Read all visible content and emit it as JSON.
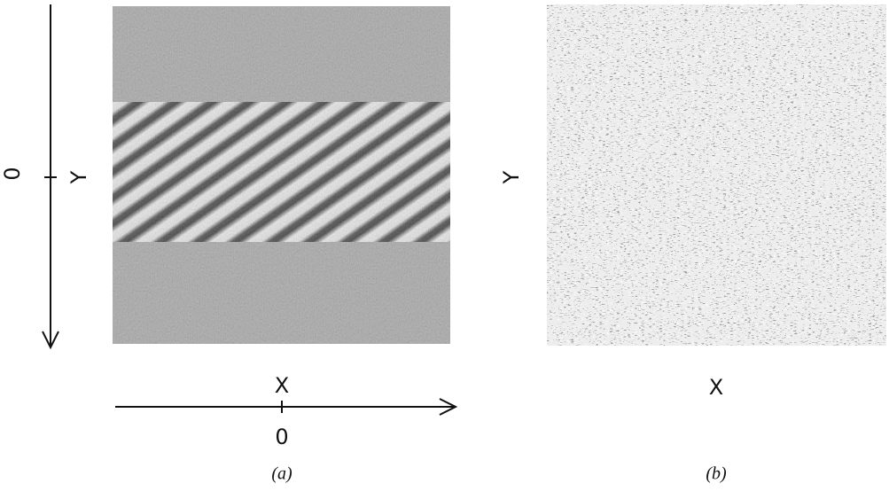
{
  "panel_a": {
    "y_axis_label": "Y",
    "y_origin_label": "0",
    "x_axis_label": "X",
    "x_origin_label": "0",
    "caption": "(a)"
  },
  "panel_b": {
    "y_axis_label": "Y",
    "x_axis_label": "X",
    "caption": "(b)"
  }
}
